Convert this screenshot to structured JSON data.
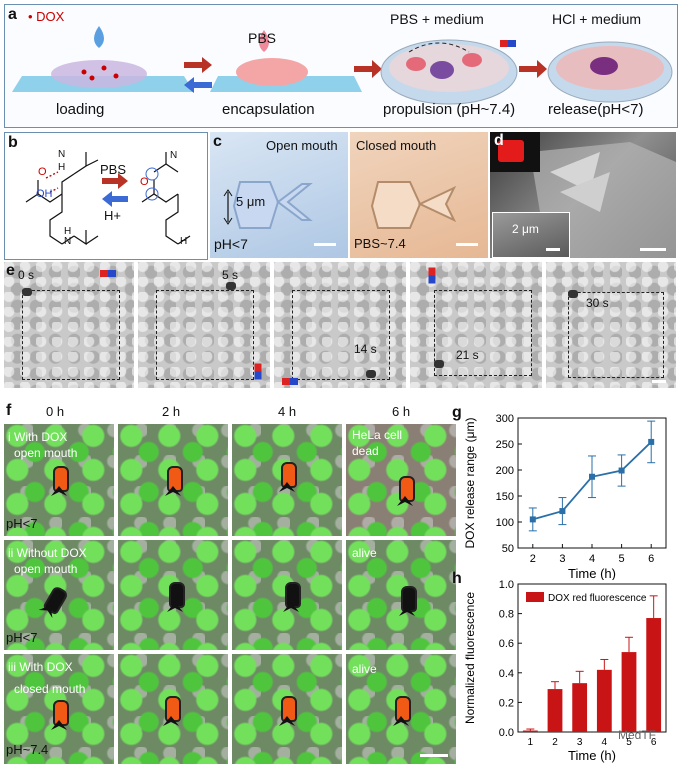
{
  "panel_a": {
    "label": "a",
    "legend": "• DOX",
    "top_texts": [
      "PBS",
      "PBS + medium",
      "HCl + medium"
    ],
    "stages": [
      "loading",
      "encapsulation",
      "propulsion (pH~7.4)",
      "release(pH<7)"
    ]
  },
  "panel_b": {
    "label": "b",
    "labels": [
      "N",
      "H",
      "O",
      "OH",
      "PBS",
      "H+",
      "N",
      "O",
      "H",
      "N",
      "H"
    ]
  },
  "panel_c": {
    "label": "c",
    "open_title": "Open mouth",
    "closed_title": "Closed mouth",
    "dimension": "5 μm",
    "ph_open": "pH<7",
    "ph_closed": "PBS~7.4"
  },
  "panel_d": {
    "label": "d",
    "dimension": "2 μm"
  },
  "panel_e": {
    "label": "e",
    "times": [
      "0 s",
      "5 s",
      "14 s",
      "21 s",
      "30 s"
    ]
  },
  "panel_f": {
    "label": "f",
    "columns": [
      "0 h",
      "2 h",
      "4 h",
      "6 h"
    ],
    "rows": [
      {
        "title_line1": "i With DOX",
        "title_line2": "open mouth",
        "ph": "pH<7",
        "status_line1": "HeLa cell",
        "status_line2": "dead"
      },
      {
        "title_line1": "ii Without DOX",
        "title_line2": "open mouth",
        "ph": "pH<7",
        "status_line1": "alive",
        "status_line2": ""
      },
      {
        "title_line1": "iii With DOX",
        "title_line2": "closed mouth",
        "ph": "pH~7.4",
        "status_line1": "alive",
        "status_line2": ""
      }
    ]
  },
  "chart_data": [
    {
      "panel": "g",
      "type": "line",
      "x": [
        2,
        3,
        4,
        5,
        6
      ],
      "y": [
        105,
        121,
        187,
        199,
        254
      ],
      "error": [
        22,
        26,
        40,
        30,
        40
      ],
      "xlabel": "Time (h)",
      "ylabel": "DOX release range (μm)",
      "xlim": [
        1.5,
        6.5
      ],
      "ylim": [
        50,
        300
      ],
      "xticks": [
        "2",
        "3",
        "4",
        "5",
        "6"
      ],
      "yticks": [
        "50",
        "100",
        "150",
        "200",
        "250",
        "300"
      ]
    },
    {
      "panel": "h",
      "type": "bar",
      "categories": [
        "1",
        "2",
        "3",
        "4",
        "5",
        "6"
      ],
      "values": [
        0.01,
        0.29,
        0.33,
        0.42,
        0.54,
        0.77
      ],
      "error": [
        0.01,
        0.05,
        0.08,
        0.07,
        0.1,
        0.15
      ],
      "legend": "DOX red fluorescence",
      "xlabel": "Time (h)",
      "ylabel": "Normalized fluorescence",
      "ylim": [
        0,
        1.0
      ],
      "yticks": [
        "0.0",
        "0.2",
        "0.4",
        "0.6",
        "0.8",
        "1.0"
      ],
      "color": "#c81414"
    }
  ],
  "watermark": "MedTF"
}
